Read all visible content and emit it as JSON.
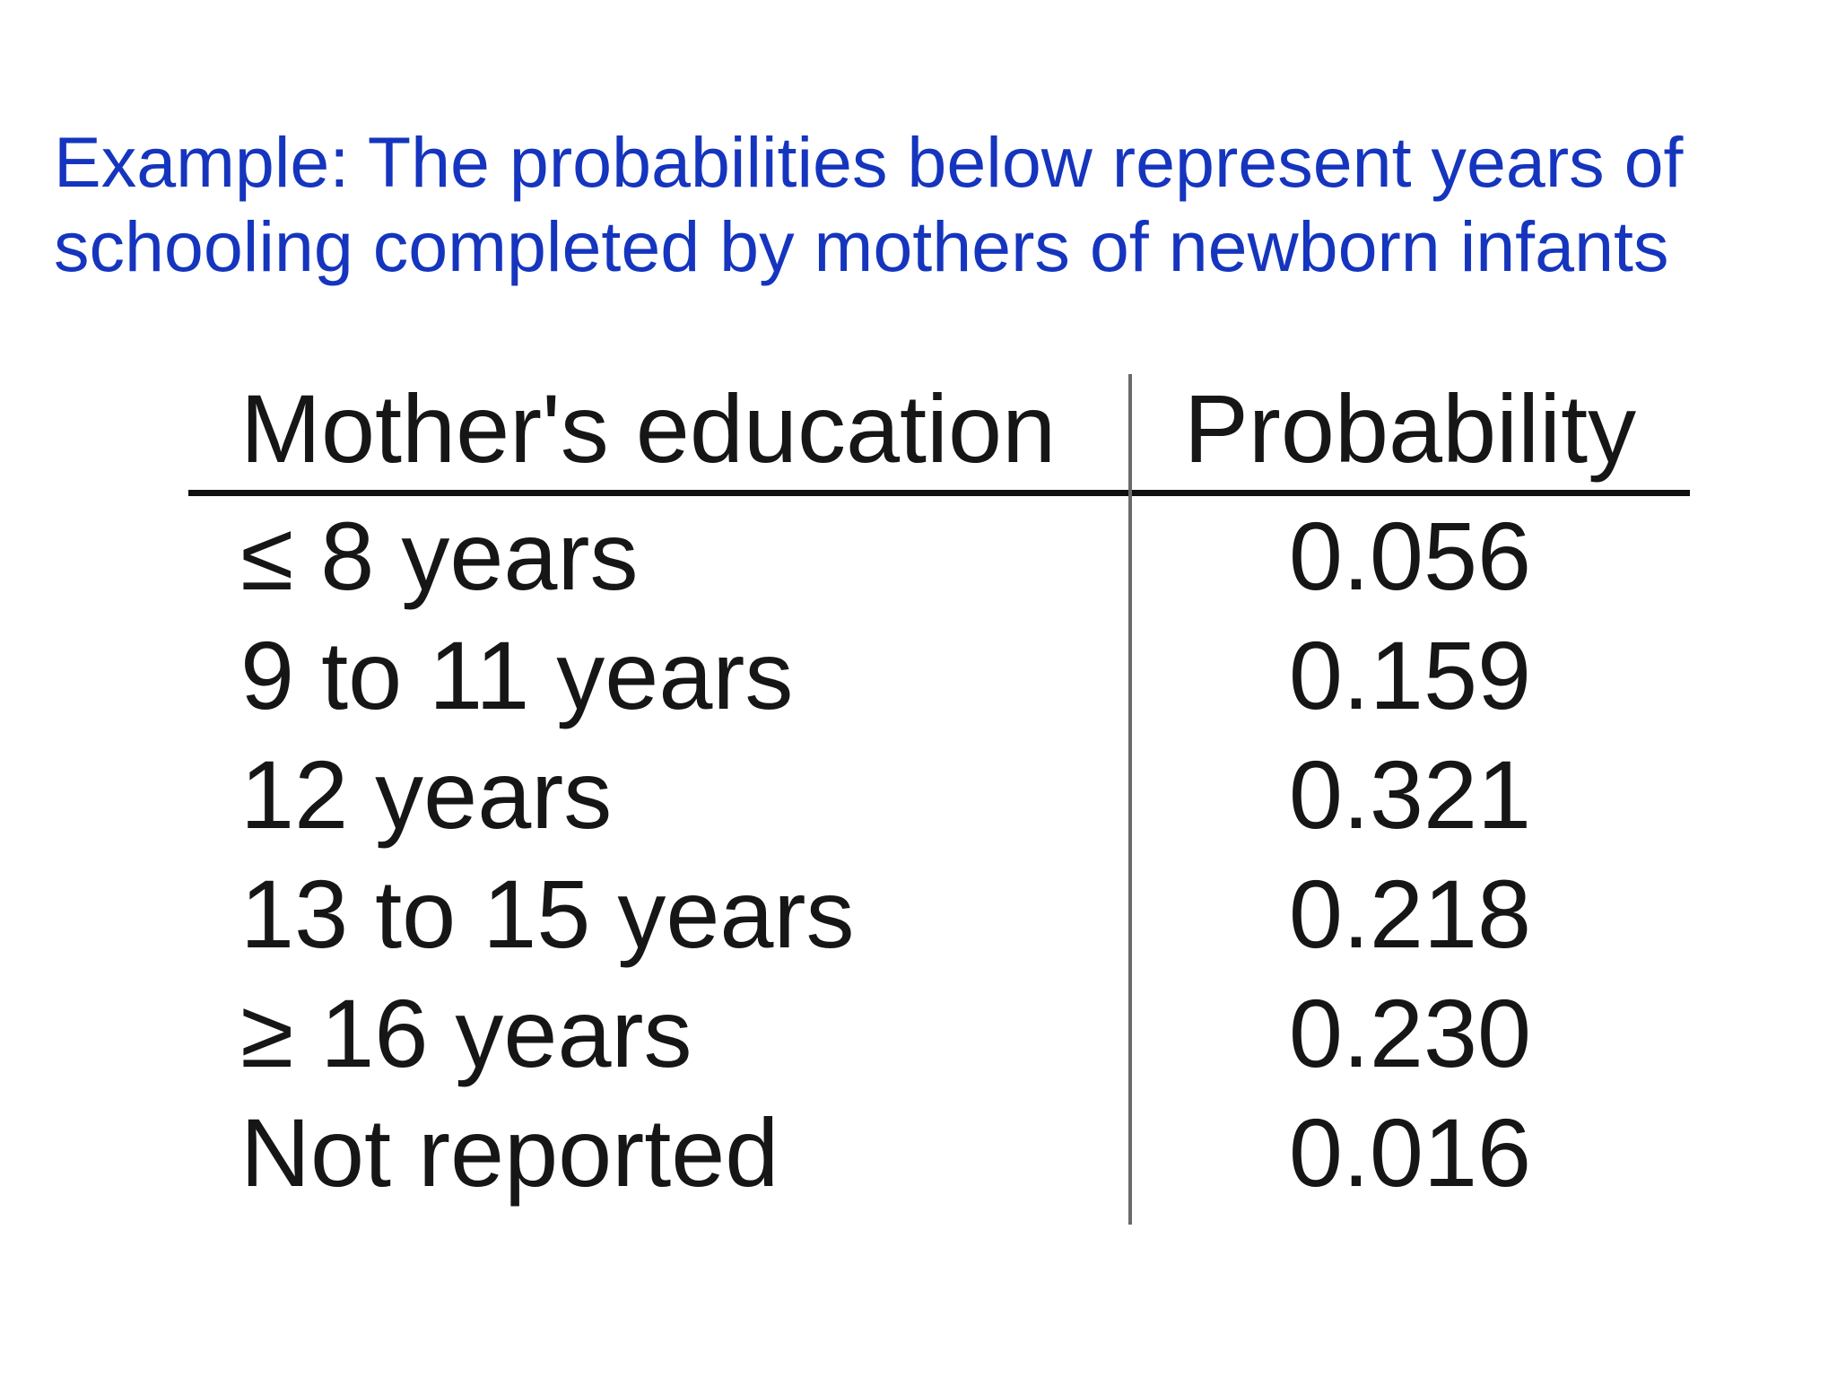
{
  "slide": {
    "title_line1": "Example: The probabilities below represent years of",
    "title_line2": "schooling completed by mothers of newborn infants"
  },
  "table": {
    "col1_header": "Mother's education",
    "col2_header": "Probability",
    "rows": [
      {
        "label": "≤ 8 years",
        "value": "0.056"
      },
      {
        "label": "9 to 11 years",
        "value": "0.159"
      },
      {
        "label": "12 years",
        "value": "0.321"
      },
      {
        "label": "13 to 15 years",
        "value": "0.218"
      },
      {
        "label": "≥ 16 years",
        "value": "0.230"
      },
      {
        "label": "Not reported",
        "value": "0.016"
      }
    ]
  },
  "colors": {
    "title_blue": "#1535BE",
    "table_text": "#161616",
    "divider_gray": "#6a6a6a",
    "rule_black": "#101010",
    "background": "#ffffff"
  }
}
